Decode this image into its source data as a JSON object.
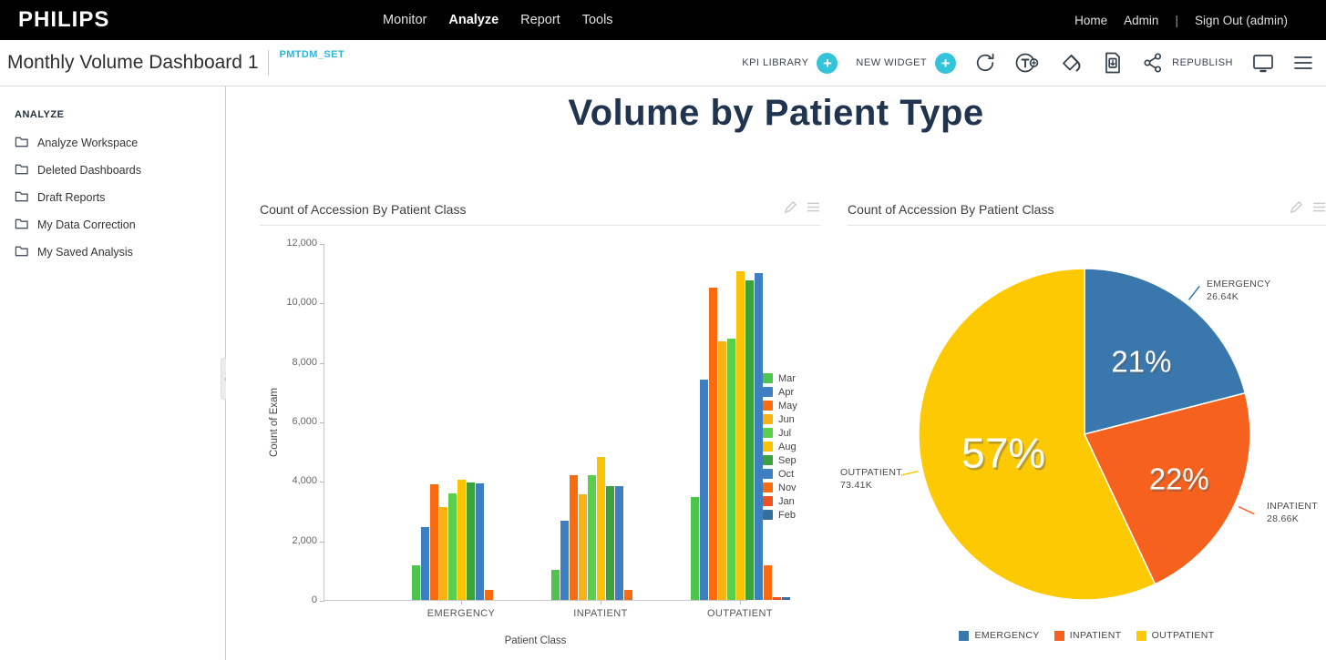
{
  "topbar": {
    "brand": "PHILIPS",
    "nav": [
      {
        "label": "Monitor",
        "active": false
      },
      {
        "label": "Analyze",
        "active": true
      },
      {
        "label": "Report",
        "active": false
      },
      {
        "label": "Tools",
        "active": false
      }
    ],
    "home": "Home",
    "admin": "Admin",
    "separator": "|",
    "signout": "Sign Out (admin)"
  },
  "toolbar": {
    "title": "Monthly Volume Dashboard 1",
    "dataset": "PMTDM_SET",
    "kpi_library_label": "KPI LIBRARY",
    "new_widget_label": "NEW WIDGET",
    "republish_label": "REPUBLISH",
    "accent_color": "#33c3da",
    "icons": [
      "refresh-icon",
      "text-add-icon",
      "fill-color-icon",
      "export-document-icon",
      "share-icon",
      "display-icon",
      "menu-icon"
    ]
  },
  "sidebar": {
    "section": "ANALYZE",
    "items": [
      {
        "label": "Analyze Workspace"
      },
      {
        "label": "Deleted Dashboards"
      },
      {
        "label": "Draft Reports"
      },
      {
        "label": "My Data Correction"
      },
      {
        "label": "My Saved Analysis"
      }
    ]
  },
  "page_title": "Volume by Patient Type",
  "chart_data": [
    {
      "type": "bar",
      "title": "Count of Accession By Patient Class",
      "xlabel": "Patient Class",
      "ylabel": "Count of Exam",
      "ylim": [
        0,
        12000
      ],
      "yticks": [
        {
          "value": 0,
          "label": "0"
        },
        {
          "value": 2000,
          "label": "2,000"
        },
        {
          "value": 4000,
          "label": "4,000"
        },
        {
          "value": 6000,
          "label": "6,000"
        },
        {
          "value": 8000,
          "label": "8,000"
        },
        {
          "value": 10000,
          "label": "10,000"
        },
        {
          "value": 12000,
          "label": "12,000"
        }
      ],
      "grid": false,
      "legend_position": "right",
      "categories": [
        "EMERGENCY",
        "INPATIENT",
        "OUTPATIENT"
      ],
      "series": [
        {
          "name": "Mar",
          "color": "#4dc44d",
          "values": [
            1150,
            1010,
            3450
          ]
        },
        {
          "name": "Apr",
          "color": "#3d7fc1",
          "values": [
            2450,
            2660,
            7400
          ]
        },
        {
          "name": "May",
          "color": "#f96b0d",
          "values": [
            3890,
            4190,
            10500
          ]
        },
        {
          "name": "Jun",
          "color": "#f9b213",
          "values": [
            3120,
            3550,
            8700
          ]
        },
        {
          "name": "Jul",
          "color": "#59cf4c",
          "values": [
            3580,
            4190,
            8800
          ]
        },
        {
          "name": "Aug",
          "color": "#fbc202",
          "values": [
            4050,
            4800,
            11050
          ]
        },
        {
          "name": "Sep",
          "color": "#3da23c",
          "values": [
            3950,
            3830,
            10750
          ]
        },
        {
          "name": "Oct",
          "color": "#3d7fc1",
          "values": [
            3920,
            3830,
            11000
          ]
        },
        {
          "name": "Nov",
          "color": "#f96b0d",
          "values": [
            340,
            340,
            1150
          ]
        },
        {
          "name": "Jan",
          "color": "#ef5120",
          "values": [
            0,
            0,
            80
          ]
        },
        {
          "name": "Feb",
          "color": "#356f9b",
          "values": [
            0,
            0,
            90
          ]
        }
      ]
    },
    {
      "type": "pie",
      "title": "Count of Accession By Patient Class",
      "slices": [
        {
          "label": "EMERGENCY",
          "percent": 21,
          "percent_label": "21%",
          "value_label": "26.64K",
          "color": "#3a77ad"
        },
        {
          "label": "INPATIENT",
          "percent": 22,
          "percent_label": "22%",
          "value_label": "28.66K",
          "color": "#f6611d"
        },
        {
          "label": "OUTPATIENT",
          "percent": 57,
          "percent_label": "57%",
          "value_label": "73.41K",
          "color": "#fcc903"
        }
      ],
      "legend": [
        "EMERGENCY",
        "INPATIENT",
        "OUTPATIENT"
      ],
      "legend_position": "bottom"
    }
  ]
}
